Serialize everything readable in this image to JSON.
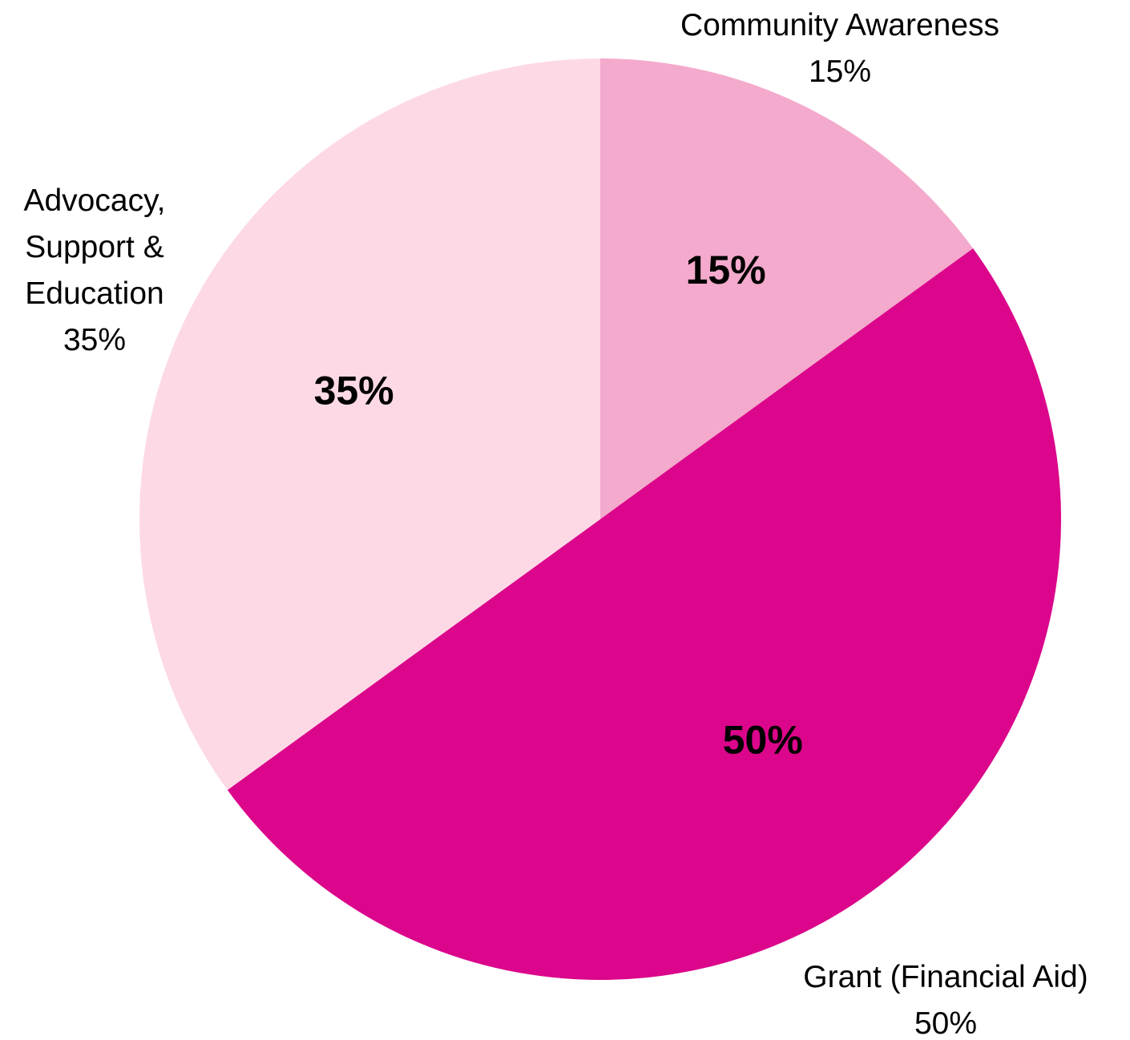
{
  "chart_data": {
    "type": "pie",
    "title": "",
    "start_angle_deg": 0,
    "direction": "clockwise",
    "slices": [
      {
        "name": "Community Awareness",
        "value": 15,
        "inner_label": "15%",
        "outer_label_lines": [
          "Community Awareness",
          "15%"
        ],
        "color": "#F4AACC"
      },
      {
        "name": "Grant (Financial Aid)",
        "value": 50,
        "inner_label": "50%",
        "outer_label_lines": [
          "Grant (Financial Aid)",
          "50%"
        ],
        "color": "#DB068B"
      },
      {
        "name": "Advocacy, Support & Education",
        "value": 35,
        "inner_label": "35%",
        "outer_label_lines": [
          "Advocacy,",
          "Support &",
          "Education",
          "35%"
        ],
        "color": "#FDD9E6"
      }
    ]
  }
}
